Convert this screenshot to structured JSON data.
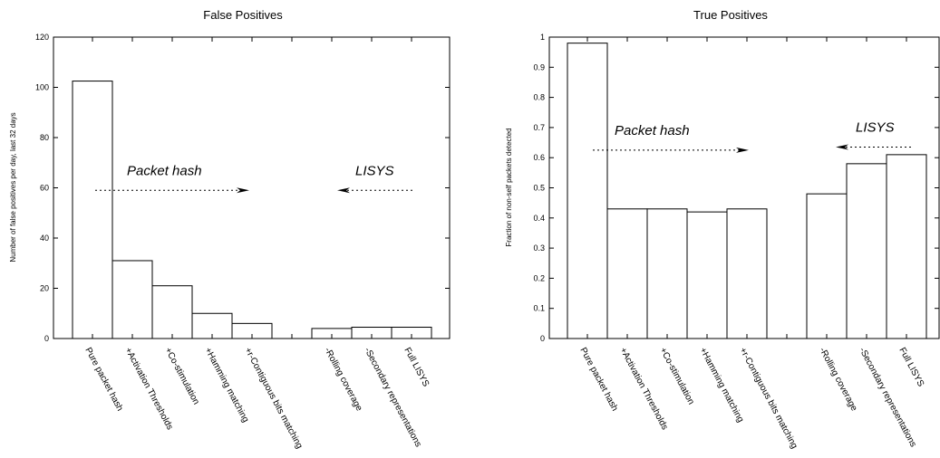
{
  "chart_data": [
    {
      "type": "bar",
      "title": "False Positives",
      "xlabel": "",
      "ylabel": "Number of false positives per day, last 32 days",
      "ylim": [
        0,
        120
      ],
      "yticks": [
        "0",
        "20",
        "40",
        "60",
        "80",
        "100",
        "120"
      ],
      "categories": [
        "Pure packet hash",
        "+Activation Thresholds",
        "+Co-stimulation",
        "+Hamming matching",
        "+r-Contiguous bits matching",
        "",
        "-Rolling coverage",
        "-Secondary representations",
        "Full LISYS"
      ],
      "values": [
        102.5,
        31,
        21,
        10,
        6,
        null,
        4,
        4.5,
        4.5
      ],
      "annotations": [
        {
          "text": "Packet hash",
          "arrow": "right",
          "at_y": 59
        },
        {
          "text": "LISYS",
          "arrow": "left",
          "at_y": 59
        }
      ],
      "grid": false
    },
    {
      "type": "bar",
      "title": "True Positives",
      "xlabel": "",
      "ylabel": "Fraction of non-self packets detected",
      "ylim": [
        0,
        1
      ],
      "yticks": [
        "0",
        "0.1",
        "0.2",
        "0.3",
        "0.4",
        "0.5",
        "0.6",
        "0.7",
        "0.8",
        "0.9",
        "1"
      ],
      "categories": [
        "Pure packet hash",
        "+Activation Thresholds",
        "+Co-stimulation",
        "+Hamming matching",
        "+r-Contiguous bits matching",
        "",
        "-Rolling coverage",
        "-Secondary representations",
        "Full LISYS"
      ],
      "values": [
        0.98,
        0.43,
        0.43,
        0.42,
        0.43,
        null,
        0.48,
        0.58,
        0.61
      ],
      "annotations": [
        {
          "text": "Packet hash",
          "arrow": "right",
          "at_y": 0.625
        },
        {
          "text": "LISYS",
          "arrow": "left",
          "at_y": 0.635
        }
      ],
      "grid": false
    }
  ]
}
